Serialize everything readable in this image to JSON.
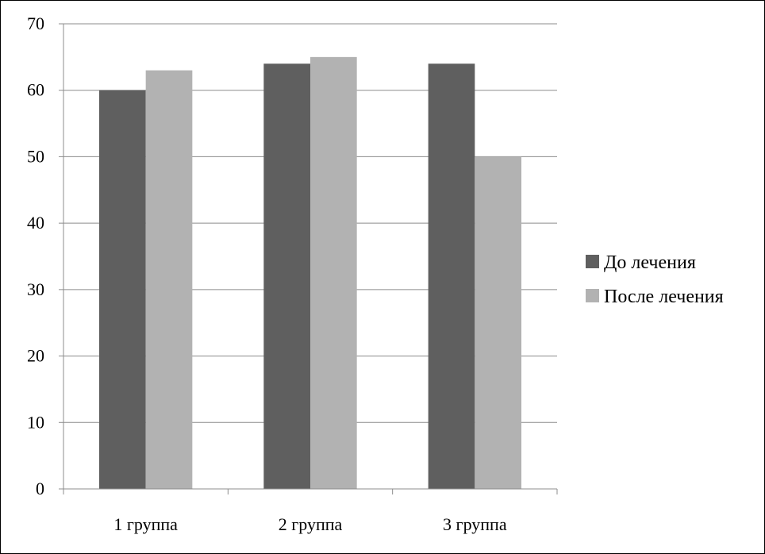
{
  "chart_data": {
    "type": "bar",
    "categories": [
      "1 группа",
      "2 группа",
      "3 группа"
    ],
    "series": [
      {
        "name": "До лечения",
        "values": [
          60,
          64,
          64
        ]
      },
      {
        "name": "После лечения",
        "values": [
          63,
          65,
          50
        ]
      }
    ],
    "title": "",
    "xlabel": "",
    "ylabel": "",
    "ylim": [
      0,
      70
    ],
    "yticks": [
      0,
      10,
      20,
      30,
      40,
      50,
      60,
      70
    ],
    "grid": true,
    "legend_position": "right"
  },
  "colors": {
    "series": [
      "#5f5f5f",
      "#b2b2b2"
    ],
    "grid": "#8c8c8c",
    "axis": "#8c8c8c"
  }
}
